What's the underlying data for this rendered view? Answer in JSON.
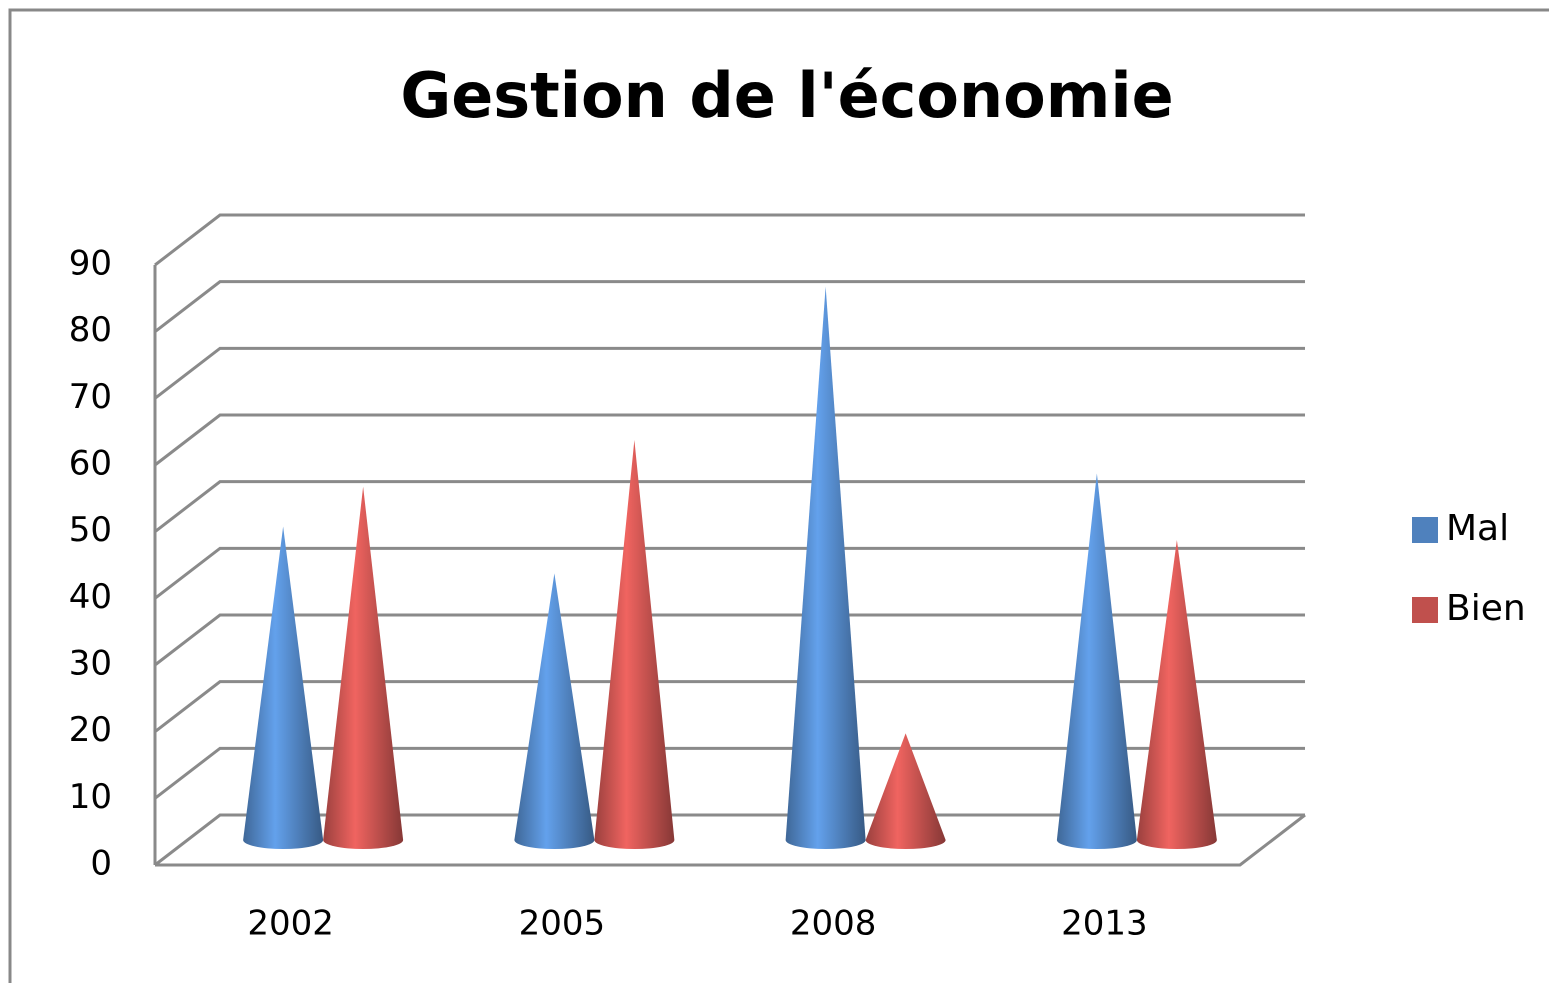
{
  "chart_data": {
    "type": "cone",
    "title": "Gestion de l'économie",
    "categories": [
      "2002",
      "2005",
      "2008",
      "2013"
    ],
    "series": [
      {
        "name": "Mal",
        "color": "#4f81bd",
        "values": [
          47,
          40,
          83,
          55
        ]
      },
      {
        "name": "Bien",
        "color": "#c0504d",
        "values": [
          53,
          60,
          16,
          45
        ]
      }
    ],
    "ylim": [
      0,
      90
    ],
    "yticks": [
      0,
      10,
      20,
      30,
      40,
      50,
      60,
      70,
      80,
      90
    ],
    "grid": true,
    "legend": "right"
  }
}
